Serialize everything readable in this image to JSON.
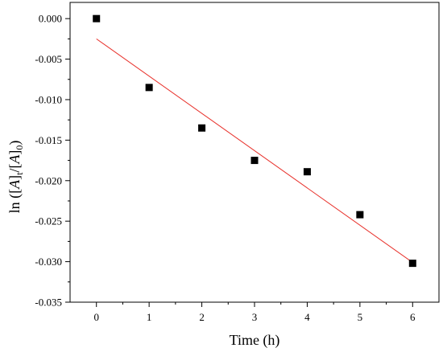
{
  "chart_data": {
    "type": "scatter",
    "xlabel": "Time (h)",
    "ylabel": {
      "prefix": "ln ([",
      "A1": "A",
      "close1": "]",
      "sub_t": "t",
      "slash": "/[",
      "A2": "A",
      "close2": "]",
      "sub_0": "0",
      "suffix": ")"
    },
    "xlim": [
      -0.5,
      6.5
    ],
    "ylim": [
      -0.035,
      0.002
    ],
    "x_ticks": [
      0,
      1,
      2,
      3,
      4,
      5,
      6
    ],
    "x_tick_labels": [
      "0",
      "1",
      "2",
      "3",
      "4",
      "5",
      "6"
    ],
    "y_ticks": [
      0.0,
      -0.005,
      -0.01,
      -0.015,
      -0.02,
      -0.025,
      -0.03,
      -0.035
    ],
    "y_tick_labels": [
      "0.000",
      "-0.005",
      "-0.010",
      "-0.015",
      "-0.020",
      "-0.025",
      "-0.030",
      "-0.035"
    ],
    "series": [
      {
        "marker": "square",
        "color": "#000000",
        "x": [
          0,
          1,
          2,
          3,
          4,
          5,
          6
        ],
        "y": [
          0.0,
          -0.0085,
          -0.0135,
          -0.0175,
          -0.0189,
          -0.0242,
          -0.0302
        ]
      }
    ],
    "fit_line": {
      "color": "#e8302a",
      "x": [
        0,
        6
      ],
      "y": [
        -0.0025,
        -0.0301
      ]
    },
    "grid": false
  }
}
